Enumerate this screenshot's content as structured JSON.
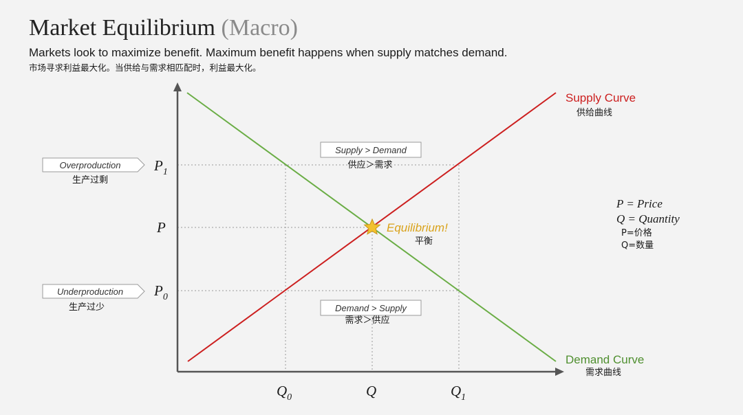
{
  "header": {
    "title_main": "Market Equilibrium",
    "title_suffix": "(Macro)",
    "subtitle_en": "Markets look to maximize benefit. Maximum benefit happens when supply matches demand.",
    "subtitle_cn": "市场寻求利益最大化。当供给与需求相匹配时，利益最大化。"
  },
  "curves": {
    "supply": {
      "label": "Supply Curve",
      "label_cn": "供给曲线",
      "color": "#cc1f1f"
    },
    "demand": {
      "label": "Demand Curve",
      "label_cn": "需求曲线",
      "color": "#6aad45"
    }
  },
  "axes": {
    "price_ticks": {
      "p1": "P",
      "p1_sub": "1",
      "p": "P",
      "p0": "P",
      "p0_sub": "0"
    },
    "quantity_ticks": {
      "q0": "Q",
      "q0_sub": "0",
      "q": "Q",
      "q1": "Q",
      "q1_sub": "1"
    }
  },
  "equilibrium": {
    "label": "Equilibrium!",
    "label_cn": "平衡",
    "star_color": "#f2c12e",
    "label_color": "#d9a21a"
  },
  "boxes": {
    "surplus": {
      "label": "Supply > Demand",
      "label_cn": "供应＞需求"
    },
    "shortage": {
      "label": "Demand > Supply",
      "label_cn": "需求＞供应"
    }
  },
  "side_labels": {
    "overproduction": {
      "label": "Overproduction",
      "label_cn": "生产过剩"
    },
    "underproduction": {
      "label": "Underproduction",
      "label_cn": "生产过少"
    }
  },
  "legend": {
    "p_def": "P = Price",
    "q_def": "Q = Quantity",
    "p_cn": "P=价格",
    "q_cn": "Q=数量"
  }
}
